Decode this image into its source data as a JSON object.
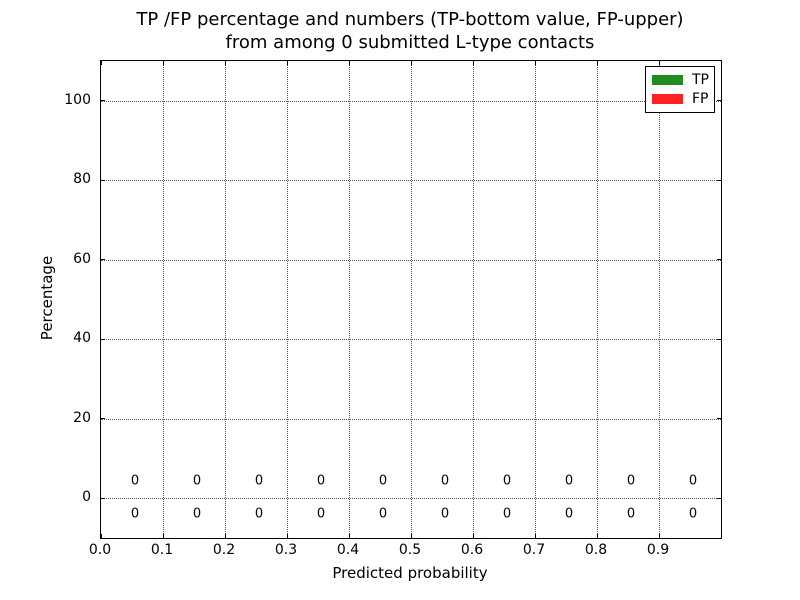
{
  "figure": {
    "background": "#ffffff",
    "text_color": "#000000",
    "grid_style": "dotted"
  },
  "chart_data": {
    "type": "bar",
    "title_line1": "TP /FP percentage and numbers (TP-bottom value, FP-upper)",
    "title_line2": "from among 0 submitted L-type contacts",
    "xlabel": "Predicted probability",
    "ylabel": "Percentage",
    "xlim": [
      0.0,
      1.0
    ],
    "ylim": [
      -10,
      110
    ],
    "x_tick_values": [
      0.0,
      0.1,
      0.2,
      0.3,
      0.4,
      0.5,
      0.6,
      0.7,
      0.8,
      0.9
    ],
    "x_tick_labels": [
      "0.0",
      "0.1",
      "0.2",
      "0.3",
      "0.4",
      "0.5",
      "0.6",
      "0.7",
      "0.8",
      "0.9"
    ],
    "y_tick_values": [
      0,
      20,
      40,
      60,
      80,
      100
    ],
    "y_tick_labels": [
      "0",
      "20",
      "40",
      "60",
      "80",
      "100"
    ],
    "grid": "dotted",
    "bin_centers": [
      0.05,
      0.15,
      0.25,
      0.35,
      0.45,
      0.55,
      0.65,
      0.75,
      0.85,
      0.95
    ],
    "series": [
      {
        "name": "TP",
        "color": "#228B22",
        "label_row": "bottom",
        "counts": [
          0,
          0,
          0,
          0,
          0,
          0,
          0,
          0,
          0,
          0
        ],
        "percentages": [
          0,
          0,
          0,
          0,
          0,
          0,
          0,
          0,
          0,
          0
        ]
      },
      {
        "name": "FP",
        "color": "#FF2222",
        "label_row": "top",
        "counts": [
          0,
          0,
          0,
          0,
          0,
          0,
          0,
          0,
          0,
          0
        ],
        "percentages": [
          0,
          0,
          0,
          0,
          0,
          0,
          0,
          0,
          0,
          0
        ]
      }
    ],
    "legend": {
      "position": "upper-right",
      "entries": [
        {
          "label": "TP",
          "color": "#228B22"
        },
        {
          "label": "FP",
          "color": "#FF2222"
        }
      ]
    }
  }
}
